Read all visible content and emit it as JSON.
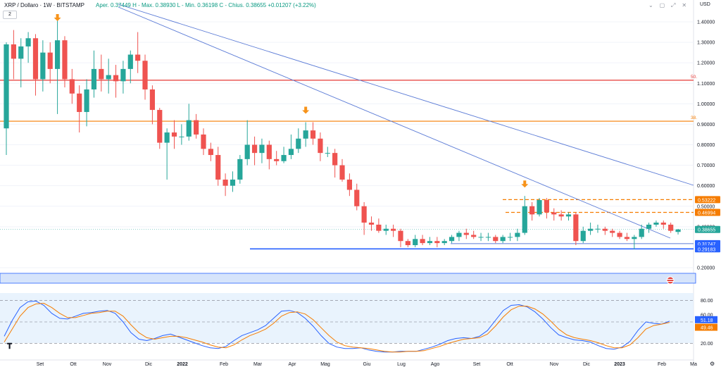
{
  "header": {
    "symbol": "XRP / Dollaro · 1W · BITSTAMP",
    "ohlc": "Aper. 0.37449  H - Max. 0.38930  L - Min. 0.36198  C - Chius. 0.38655  +0.01207 (+3.22%)",
    "indicator_count": "2",
    "currency": "USD",
    "icons": [
      "chevron-down-icon",
      "square-icon",
      "maximize-icon",
      "close-icon"
    ]
  },
  "colors": {
    "up": "#26a69a",
    "down": "#ef5350",
    "trend": "#5b7bd6",
    "fib50": "#e53935",
    "fib38": "#f57c00",
    "support": "#2962ff",
    "stoch_k": "#2962ff",
    "stoch_d": "#f57c00"
  },
  "chart_data": [
    {
      "type": "candlestick",
      "ylabel": "USD",
      "ylim": [
        0.1,
        1.45
      ],
      "y_ticks": [
        "1.40000",
        "1.30000",
        "1.20000",
        "1.10000",
        "1.00000",
        "0.90000",
        "0.80000",
        "0.70000",
        "0.60000",
        "0.50000",
        "0.40000",
        "0.20000"
      ],
      "x_labels": [
        "Set",
        "Ott",
        "Nov",
        "Dic",
        "2022",
        "Feb",
        "Mar",
        "Apr",
        "Mag",
        "Giu",
        "Lug",
        "Ago",
        "Set",
        "Ott",
        "Nov",
        "Dic",
        "2023",
        "Feb",
        "Ma"
      ],
      "candles": [
        [
          0.88,
          1.29,
          1.3,
          0.75
        ],
        [
          1.29,
          1.22,
          1.36,
          1.12
        ],
        [
          1.22,
          1.28,
          1.32,
          1.08
        ],
        [
          1.28,
          1.32,
          1.35,
          1.2
        ],
        [
          1.32,
          1.12,
          1.34,
          1.04
        ],
        [
          1.12,
          1.25,
          1.31,
          1.06
        ],
        [
          1.25,
          1.17,
          1.3,
          1.1
        ],
        [
          1.17,
          1.31,
          1.42,
          0.95
        ],
        [
          1.31,
          1.12,
          1.33,
          1.08
        ],
        [
          1.12,
          1.05,
          1.17,
          1.0
        ],
        [
          1.05,
          0.96,
          1.09,
          0.86
        ],
        [
          0.96,
          1.07,
          1.12,
          0.89
        ],
        [
          1.07,
          1.17,
          1.26,
          1.03
        ],
        [
          1.17,
          1.12,
          1.24,
          1.06
        ],
        [
          1.12,
          1.14,
          1.22,
          1.05
        ],
        [
          1.14,
          1.11,
          1.19,
          1.03
        ],
        [
          1.11,
          1.17,
          1.21,
          1.05
        ],
        [
          1.17,
          1.24,
          1.26,
          1.1
        ],
        [
          1.24,
          1.21,
          1.35,
          1.15
        ],
        [
          1.21,
          1.07,
          1.24,
          1.02
        ],
        [
          1.07,
          0.97,
          1.09,
          0.9
        ],
        [
          0.97,
          0.81,
          0.98,
          0.78
        ],
        [
          0.81,
          0.86,
          0.88,
          0.63
        ],
        [
          0.86,
          0.84,
          0.92,
          0.78
        ],
        [
          0.84,
          0.84,
          0.9,
          0.8
        ],
        [
          0.84,
          0.92,
          1.0,
          0.82
        ],
        [
          0.92,
          0.85,
          0.95,
          0.83
        ],
        [
          0.85,
          0.78,
          0.88,
          0.75
        ],
        [
          0.78,
          0.75,
          0.81,
          0.72
        ],
        [
          0.75,
          0.63,
          0.79,
          0.6
        ],
        [
          0.63,
          0.6,
          0.66,
          0.55
        ],
        [
          0.6,
          0.63,
          0.67,
          0.57
        ],
        [
          0.63,
          0.73,
          0.75,
          0.61
        ],
        [
          0.73,
          0.8,
          0.92,
          0.7
        ],
        [
          0.8,
          0.76,
          0.84,
          0.7
        ],
        [
          0.76,
          0.8,
          0.83,
          0.71
        ],
        [
          0.8,
          0.73,
          0.82,
          0.68
        ],
        [
          0.73,
          0.72,
          0.77,
          0.7
        ],
        [
          0.72,
          0.75,
          0.79,
          0.71
        ],
        [
          0.75,
          0.78,
          0.85,
          0.73
        ],
        [
          0.78,
          0.83,
          0.88,
          0.76
        ],
        [
          0.83,
          0.87,
          0.91,
          0.79
        ],
        [
          0.87,
          0.83,
          0.91,
          0.8
        ],
        [
          0.83,
          0.76,
          0.86,
          0.72
        ],
        [
          0.76,
          0.76,
          0.79,
          0.74
        ],
        [
          0.76,
          0.7,
          0.78,
          0.64
        ],
        [
          0.7,
          0.63,
          0.73,
          0.62
        ],
        [
          0.63,
          0.58,
          0.66,
          0.55
        ],
        [
          0.58,
          0.5,
          0.61,
          0.48
        ],
        [
          0.5,
          0.42,
          0.52,
          0.36
        ],
        [
          0.42,
          0.41,
          0.45,
          0.38
        ],
        [
          0.41,
          0.38,
          0.44,
          0.37
        ],
        [
          0.38,
          0.39,
          0.41,
          0.36
        ],
        [
          0.39,
          0.38,
          0.41,
          0.35
        ],
        [
          0.38,
          0.33,
          0.39,
          0.3
        ],
        [
          0.33,
          0.31,
          0.34,
          0.3
        ],
        [
          0.31,
          0.34,
          0.36,
          0.3
        ],
        [
          0.34,
          0.32,
          0.36,
          0.31
        ],
        [
          0.32,
          0.33,
          0.35,
          0.31
        ],
        [
          0.33,
          0.32,
          0.35,
          0.3
        ],
        [
          0.32,
          0.33,
          0.34,
          0.31
        ],
        [
          0.33,
          0.35,
          0.36,
          0.32
        ],
        [
          0.35,
          0.37,
          0.38,
          0.33
        ],
        [
          0.37,
          0.36,
          0.39,
          0.34
        ],
        [
          0.36,
          0.35,
          0.38,
          0.34
        ],
        [
          0.35,
          0.35,
          0.37,
          0.33
        ],
        [
          0.35,
          0.35,
          0.37,
          0.33
        ],
        [
          0.35,
          0.33,
          0.36,
          0.32
        ],
        [
          0.33,
          0.35,
          0.36,
          0.32
        ],
        [
          0.35,
          0.35,
          0.37,
          0.33
        ],
        [
          0.35,
          0.37,
          0.39,
          0.33
        ],
        [
          0.37,
          0.5,
          0.55,
          0.36
        ],
        [
          0.5,
          0.46,
          0.52,
          0.43
        ],
        [
          0.46,
          0.53,
          0.54,
          0.45
        ],
        [
          0.53,
          0.47,
          0.54,
          0.44
        ],
        [
          0.47,
          0.46,
          0.49,
          0.43
        ],
        [
          0.46,
          0.45,
          0.48,
          0.43
        ],
        [
          0.45,
          0.46,
          0.47,
          0.43
        ],
        [
          0.46,
          0.33,
          0.47,
          0.31
        ],
        [
          0.33,
          0.38,
          0.4,
          0.32
        ],
        [
          0.38,
          0.39,
          0.42,
          0.36
        ],
        [
          0.39,
          0.39,
          0.41,
          0.37
        ],
        [
          0.39,
          0.38,
          0.4,
          0.36
        ],
        [
          0.38,
          0.37,
          0.39,
          0.35
        ],
        [
          0.37,
          0.35,
          0.38,
          0.34
        ],
        [
          0.35,
          0.34,
          0.37,
          0.33
        ],
        [
          0.34,
          0.35,
          0.36,
          0.29
        ],
        [
          0.35,
          0.39,
          0.41,
          0.34
        ],
        [
          0.39,
          0.41,
          0.42,
          0.37
        ],
        [
          0.41,
          0.42,
          0.43,
          0.4
        ],
        [
          0.42,
          0.41,
          0.43,
          0.39
        ],
        [
          0.41,
          0.38,
          0.42,
          0.37
        ],
        [
          0.37449,
          0.38655,
          0.3893,
          0.36198
        ]
      ],
      "horizontal_lines": [
        {
          "name": "fib-50",
          "value": 1.115,
          "label": "50."
        },
        {
          "name": "fib-38",
          "value": 0.915,
          "label": "38."
        },
        {
          "name": "resistance-1",
          "value": 0.53222,
          "label": "0.53222"
        },
        {
          "name": "resistance-2",
          "value": 0.46994,
          "label": "0.46994"
        },
        {
          "name": "support-1",
          "value": 0.31747,
          "label": "0.31747"
        },
        {
          "name": "support-2",
          "value": 0.29183,
          "label": "0.29183"
        }
      ],
      "last_price": "0.38655",
      "signal_arrows": [
        7,
        41,
        71
      ]
    },
    {
      "type": "line",
      "ylim": [
        0,
        100
      ],
      "y_ticks": [
        "80.00",
        "60.00",
        "20.00"
      ],
      "k_last": "51.18",
      "d_last": "49.46",
      "series": [
        {
          "key": "k",
          "values": [
            30,
            52,
            70,
            78,
            79,
            73,
            62,
            55,
            54,
            58,
            62,
            63,
            65,
            66,
            62,
            50,
            35,
            26,
            24,
            27,
            31,
            33,
            29,
            25,
            21,
            17,
            14,
            13,
            16,
            24,
            31,
            35,
            39,
            45,
            55,
            65,
            66,
            63,
            55,
            44,
            31,
            20,
            15,
            13,
            13,
            14,
            11,
            9,
            8,
            8,
            9,
            9,
            9,
            12,
            15,
            19,
            24,
            27,
            28,
            27,
            30,
            38,
            52,
            66,
            73,
            74,
            71,
            64,
            54,
            42,
            32,
            28,
            25,
            24,
            22,
            17,
            13,
            12,
            15,
            23,
            38,
            50,
            48,
            47,
            51.18
          ]
        },
        {
          "key": "d",
          "values": [
            22,
            40,
            58,
            70,
            75,
            76,
            70,
            62,
            56,
            56,
            59,
            62,
            63,
            65,
            65,
            58,
            46,
            35,
            28,
            26,
            28,
            30,
            30,
            28,
            25,
            22,
            18,
            15,
            14,
            18,
            25,
            31,
            35,
            40,
            48,
            58,
            63,
            64,
            61,
            53,
            42,
            31,
            22,
            17,
            15,
            14,
            13,
            11,
            9,
            8,
            8,
            9,
            9,
            10,
            13,
            16,
            20,
            23,
            26,
            27,
            28,
            33,
            44,
            57,
            67,
            72,
            72,
            68,
            61,
            51,
            40,
            32,
            28,
            26,
            24,
            21,
            17,
            14,
            14,
            18,
            28,
            40,
            45,
            47,
            49.46
          ]
        }
      ],
      "bands": [
        80,
        50,
        20
      ]
    }
  ]
}
